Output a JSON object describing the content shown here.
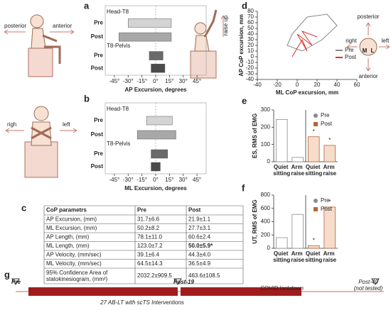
{
  "panels": [
    "a",
    "b",
    "c",
    "d",
    "e",
    "f",
    "g"
  ],
  "illustration_labels": {
    "a": [
      "posterior",
      "anterior"
    ],
    "b": [
      "righ",
      "left"
    ],
    "d": [
      "raise up"
    ],
    "head": [
      "posterior",
      "right",
      "left",
      "anterior",
      "M",
      "L"
    ]
  },
  "chart_data": [
    {
      "type": "bar",
      "orientation": "horizontal",
      "xlabel": "AP Excursion, degrees",
      "groups": [
        "Head-T8",
        "T8-Pelvis"
      ],
      "categories": [
        "Pre",
        "Post",
        "Pre",
        "Post"
      ],
      "values": [
        [
          -30,
          17
        ],
        [
          -40,
          17
        ],
        [
          -7,
          8
        ],
        [
          -5,
          10
        ]
      ],
      "colors": [
        "#d4d4d4",
        "#a8a8a8",
        "#6a6a6a",
        "#4a4a4a"
      ],
      "xlim": [
        -55,
        55
      ],
      "xticks": [
        {
          "value": -45,
          "label": "-45°"
        },
        {
          "value": -30,
          "label": "-30°"
        },
        {
          "value": -15,
          "label": "-15°"
        },
        {
          "value": 0,
          "label": "0°"
        },
        {
          "value": 15,
          "label": "15°"
        },
        {
          "value": 30,
          "label": "30°"
        },
        {
          "value": 45,
          "label": "45°"
        }
      ]
    },
    {
      "type": "bar",
      "orientation": "horizontal",
      "xlabel": "ML Excursion, degrees",
      "groups": [
        "Head-T8",
        "T8-Pelvis"
      ],
      "categories": [
        "Pre",
        "Post",
        "Pre",
        "Post"
      ],
      "values": [
        [
          -10,
          18
        ],
        [
          -20,
          22
        ],
        [
          -5,
          13
        ],
        [
          -5,
          5
        ]
      ],
      "colors": [
        "#d4d4d4",
        "#a8a8a8",
        "#6a6a6a",
        "#4a4a4a"
      ],
      "xlim": [
        -55,
        55
      ],
      "xticks": [
        {
          "value": -45,
          "label": "-45°"
        },
        {
          "value": -30,
          "label": "-30°"
        },
        {
          "value": -15,
          "label": "-15°"
        },
        {
          "value": 0,
          "label": "0°"
        },
        {
          "value": 15,
          "label": "15°"
        },
        {
          "value": 30,
          "label": "30°"
        },
        {
          "value": 45,
          "label": "45°"
        }
      ]
    },
    {
      "type": "line",
      "xlabel": "ML CoP excursion, mm",
      "ylabel": "AP CoP excursion, mm",
      "xlim": [
        -40,
        60
      ],
      "xticks": [
        -40,
        -20,
        0,
        20,
        40,
        60
      ],
      "ylim": [
        -40,
        80
      ],
      "yticks": [
        -40,
        -30,
        -20,
        -10,
        0,
        10,
        20,
        30,
        40,
        50,
        60,
        70,
        80
      ],
      "series": [
        {
          "name": "Pre",
          "color": "#888888",
          "x": [
            -5,
            10,
            30,
            40,
            25,
            5,
            -10,
            -5
          ],
          "y": [
            40,
            70,
            75,
            55,
            30,
            10,
            20,
            40
          ]
        },
        {
          "name": "Post",
          "color": "#d9342b",
          "x": [
            -5,
            5,
            10,
            0,
            15,
            5,
            20
          ],
          "y": [
            0,
            30,
            10,
            40,
            20,
            45,
            35
          ]
        }
      ]
    },
    {
      "type": "bar",
      "orientation": "vertical",
      "ylabel": "ES, RMS of EMG",
      "categories": [
        "Quiet sitting",
        "Arm raise",
        "Quiet sitting",
        "Arm raise"
      ],
      "ylim": [
        0,
        300
      ],
      "yticks": [
        0,
        100,
        200,
        300
      ],
      "annotations": [
        "*",
        "*"
      ],
      "series": [
        {
          "name": "Pre",
          "color": "#8a8a8a",
          "values": [
            245,
            25,
            null,
            null
          ]
        },
        {
          "name": "Post",
          "color": "#b5653a",
          "values": [
            null,
            null,
            145,
            95
          ]
        }
      ]
    },
    {
      "type": "bar",
      "orientation": "vertical",
      "ylabel": "UT, RMS of EMG",
      "categories": [
        "Quiet sitting",
        "Arm raise",
        "Quiet sitting",
        "Arm raise"
      ],
      "ylim": [
        0,
        800
      ],
      "yticks": [
        0,
        200,
        400,
        600,
        800
      ],
      "annotations": [
        "*",
        "*"
      ],
      "series": [
        {
          "name": "Pre",
          "color": "#8a8a8a",
          "values": [
            160,
            510,
            null,
            null
          ]
        },
        {
          "name": "Post",
          "color": "#b5653a",
          "values": [
            null,
            null,
            40,
            620
          ]
        }
      ]
    }
  ],
  "table": {
    "header": [
      "CoP parametrs",
      "Pre",
      "Post"
    ],
    "rows": [
      [
        "AP Excursion, (mm)",
        "31.7±6.6",
        "21.9±1.1"
      ],
      [
        "ML Excursion, (mm)",
        "50.2±8.2",
        "27.7±3.1"
      ],
      [
        "AP Length, (mm)",
        "78.1±11.0",
        "60.6±2.4"
      ],
      [
        "ML Length,  (mm)",
        "123.0±7.2",
        "50.0±5.9*"
      ],
      [
        "AP Velocity, (mm/sec)",
        "39.1±6.4",
        "44.3±4.0"
      ],
      [
        "ML Velocity, (mm/sec)",
        "64.5±14.3",
        "36.5±4.9"
      ],
      [
        "95% Confidence Area of statokinesiogram, (mm²)",
        "2032.2±909.5",
        "463.6±108.5"
      ]
    ]
  },
  "timeline": {
    "start": "Pre",
    "mid": "Post-19",
    "lockdown": "COVID lockdown",
    "end": "Post-40",
    "end_note": "(not tested)",
    "intervention": "27 AB-LT with scTS Interventions"
  }
}
